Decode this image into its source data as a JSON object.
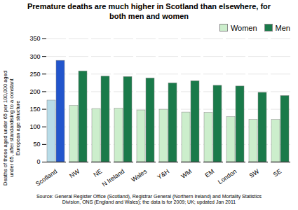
{
  "chart_data": {
    "type": "bar",
    "title": "Premature deaths are much higher in Scotland than elsewhere, for\nboth men and women",
    "ylabel": "Deaths of those aged under 65 per 100,000 aged\nunder 65, after standardising to a constant\nEuropean age structure",
    "caption": "Source: General Register Office (Scotland), Registrar General (Northern Ireland) and Mortality Statistics\nDivision, ONS (England and Wales); the data is for 2009; UK; updated Jan 2011",
    "categories": [
      "Scotland",
      "NW",
      "NE",
      "N Ireland",
      "Wales",
      "Y&H",
      "WM",
      "EM",
      "London",
      "SW",
      "SE"
    ],
    "series": [
      {
        "name": "Women",
        "color": "#cceecc",
        "colors": [
          "#b8dce8",
          "#cceecc",
          "#cceecc",
          "#cceecc",
          "#cceecc",
          "#cceecc",
          "#cceecc",
          "#cceecc",
          "#cceecc",
          "#cceecc",
          "#cceecc"
        ],
        "values": [
          175,
          160,
          151,
          152,
          147,
          149,
          141,
          140,
          128,
          120,
          120
        ]
      },
      {
        "name": "Men",
        "color": "#1a7a4a",
        "colors": [
          "#2255cc",
          "#1a7a4a",
          "#1a7a4a",
          "#1a7a4a",
          "#1a7a4a",
          "#1a7a4a",
          "#1a7a4a",
          "#1a7a4a",
          "#1a7a4a",
          "#1a7a4a",
          "#1a7a4a"
        ],
        "values": [
          288,
          258,
          243,
          242,
          238,
          224,
          230,
          217,
          215,
          197,
          188
        ]
      }
    ],
    "ylim": [
      0,
      350
    ],
    "yticks": [
      0,
      50,
      100,
      150,
      200,
      250,
      300,
      350
    ],
    "grid": true,
    "legend": "upper right"
  }
}
